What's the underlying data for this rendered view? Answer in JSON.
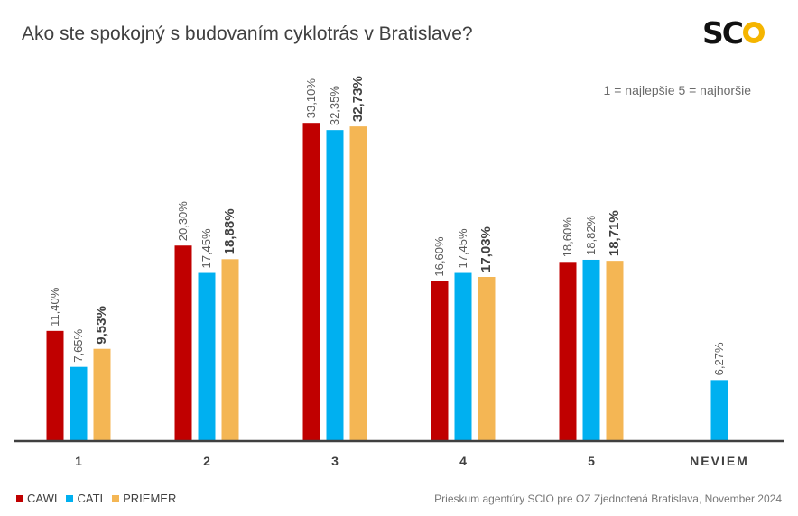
{
  "title": "Ako ste spokojný s budovaním cyklotrás v Bratislave?",
  "note": "1 = najlepšie 5 = najhoršie",
  "source": "Prieskum agentúry SCIO pre OZ Zjednotená Bratislava, November 2024",
  "logo": {
    "text": "SC"
  },
  "colors": {
    "CAWI": "#c00000",
    "CATI": "#00b0f0",
    "PRIEMER": "#f4b654",
    "axis": "#404040"
  },
  "chart_data": {
    "type": "bar",
    "categories": [
      "1",
      "2",
      "3",
      "4",
      "5",
      "NEVIEM"
    ],
    "series": [
      {
        "name": "CAWI",
        "values": [
          11.4,
          20.3,
          33.1,
          16.6,
          18.6,
          null
        ],
        "labels": [
          "11,40%",
          "20,30%",
          "33,10%",
          "16,60%",
          "18,60%",
          null
        ]
      },
      {
        "name": "CATI",
        "values": [
          7.65,
          17.45,
          32.35,
          17.45,
          18.82,
          6.27
        ],
        "labels": [
          "7,65%",
          "17,45%",
          "32,35%",
          "17,45%",
          "18,82%",
          "6,27%"
        ]
      },
      {
        "name": "PRIEMER",
        "values": [
          9.53,
          18.88,
          32.73,
          17.03,
          18.71,
          null
        ],
        "labels": [
          "9,53%",
          "18,88%",
          "32,73%",
          "17,03%",
          "18,71%",
          null
        ]
      }
    ],
    "ylim": [
      0,
      35
    ],
    "legend": "bottom-left",
    "grid": false
  }
}
